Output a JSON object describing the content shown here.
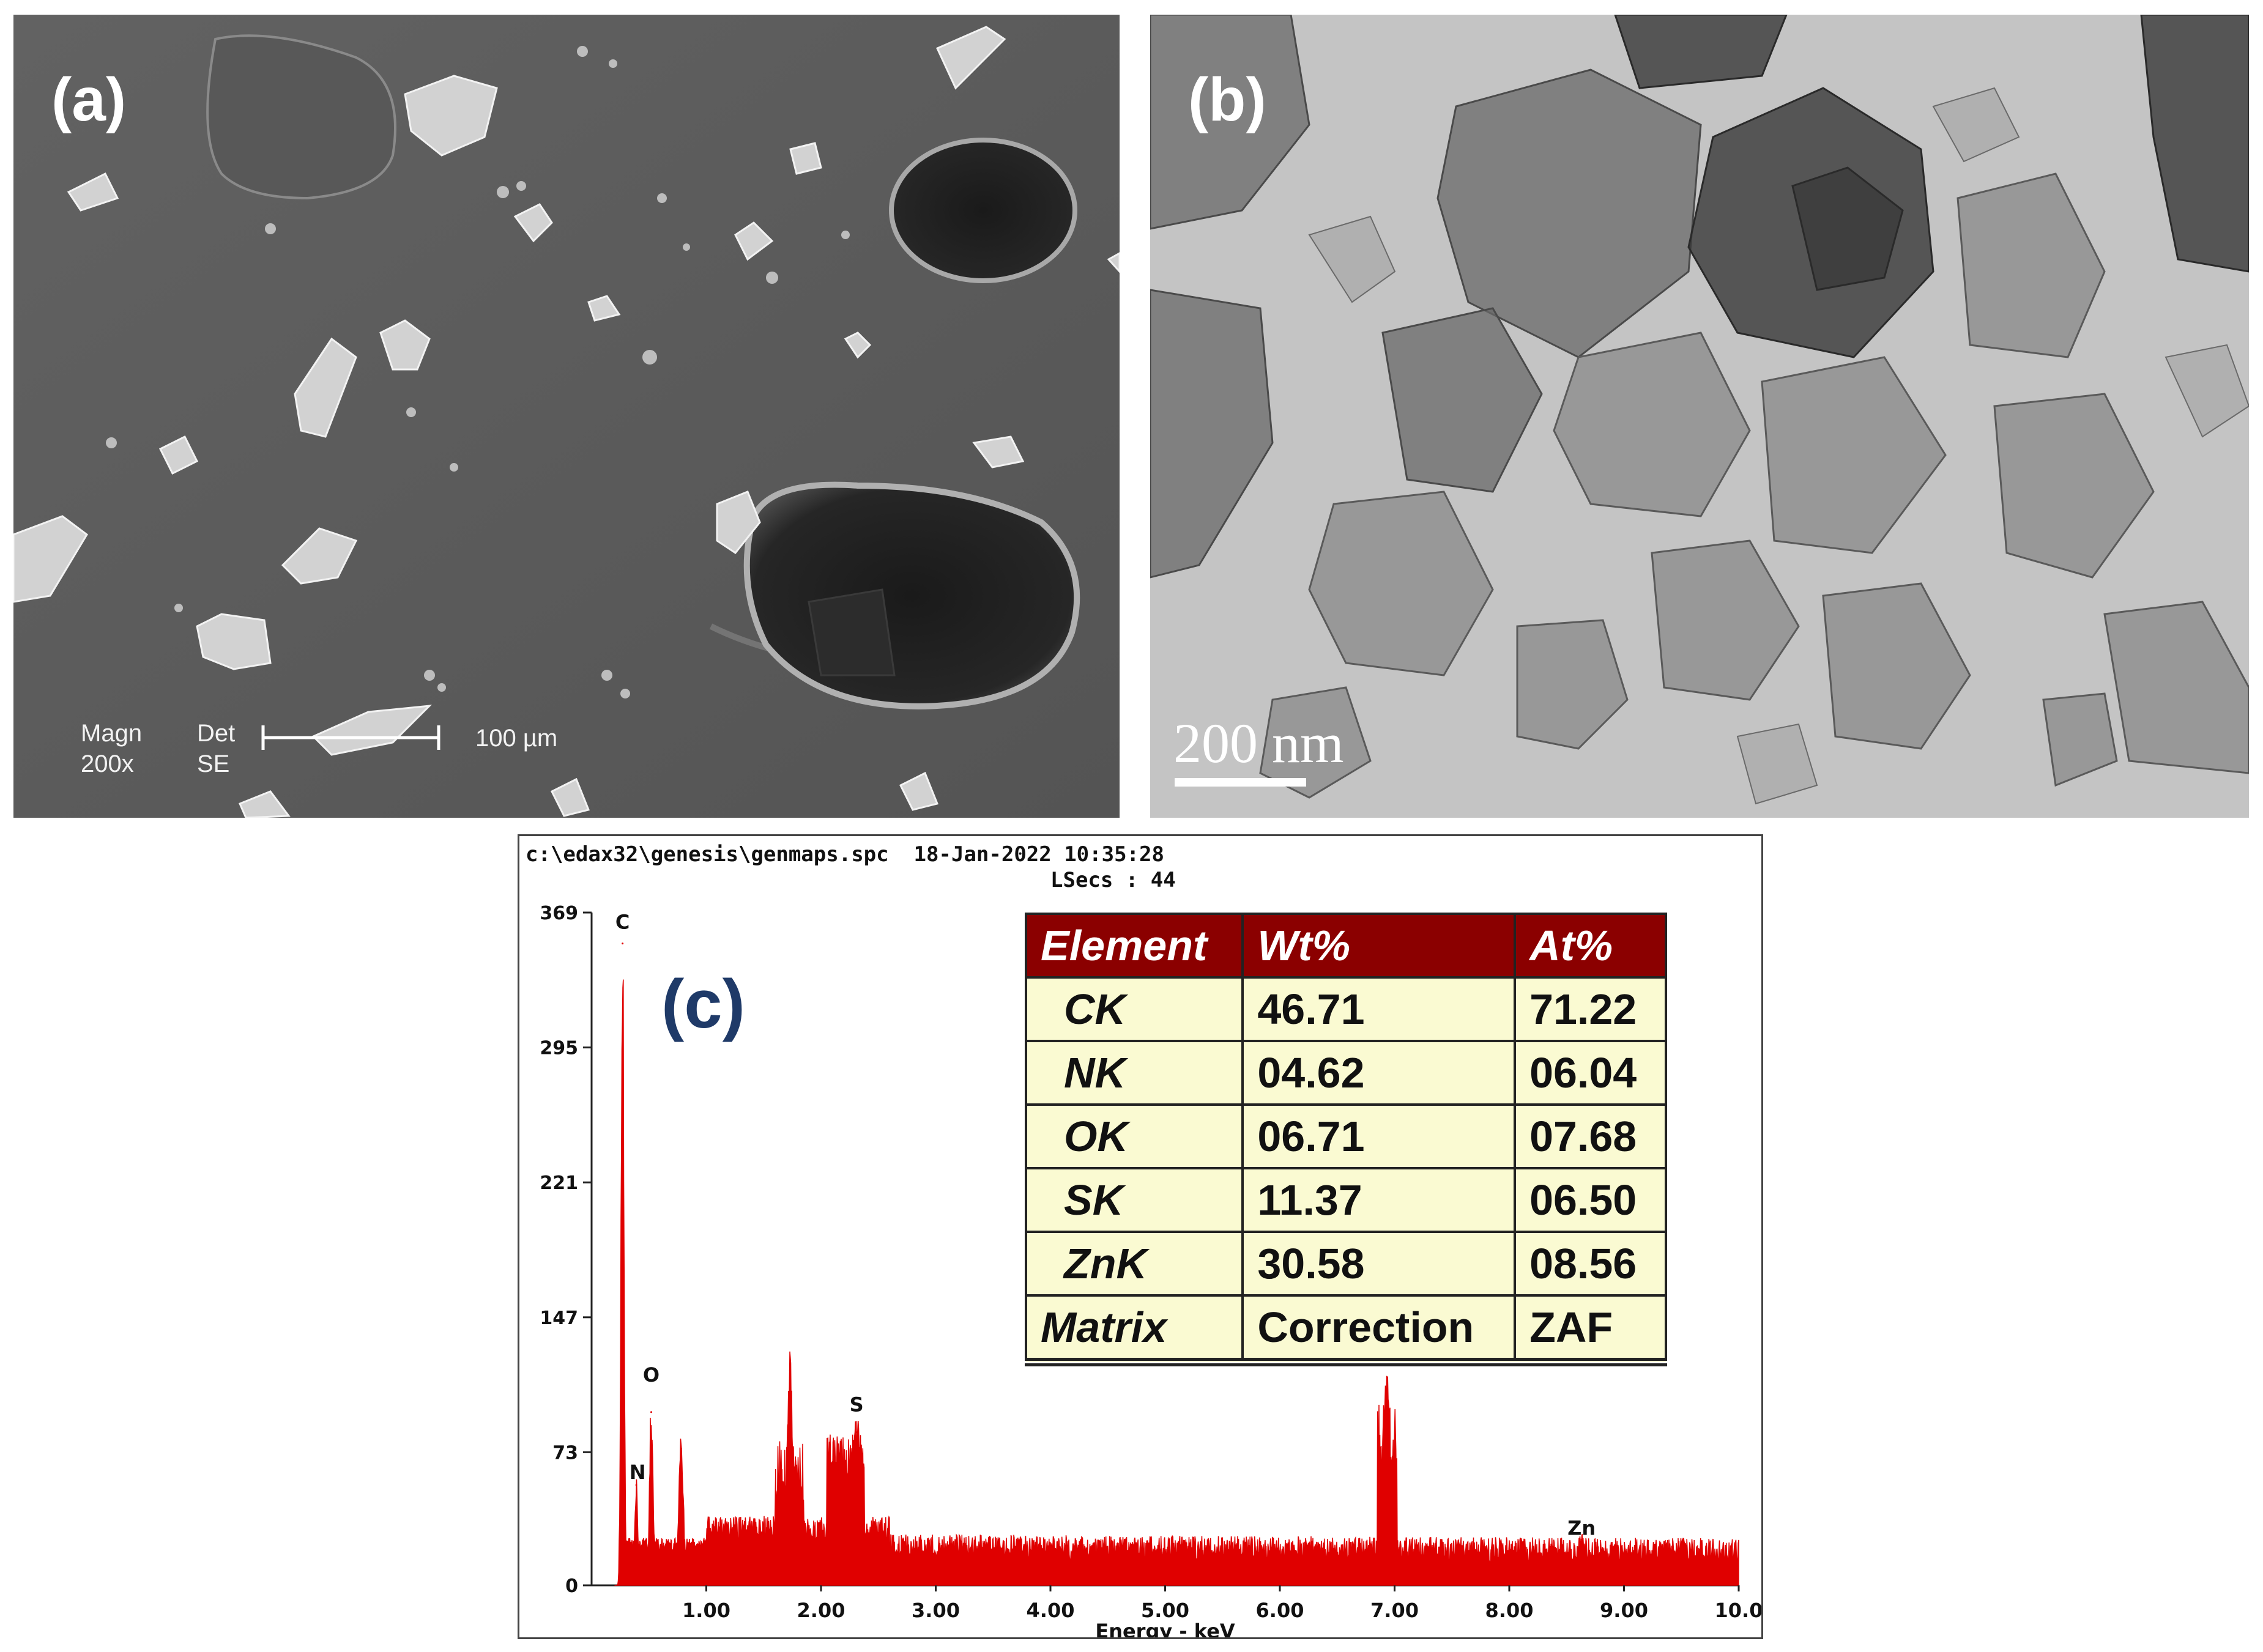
{
  "panel_a": {
    "label": "(a)",
    "magn_label": "Magn",
    "magn_value": "200x",
    "det_label": "Det",
    "det_value": "SE",
    "scale_text": "100 µm"
  },
  "panel_b": {
    "label": "(b)",
    "scale_text": "200 nm"
  },
  "panel_c": {
    "label": "(c)",
    "header_path": "c:\\edax32\\genesis\\genmaps.spc  18-Jan-2022 10:35:28",
    "header_lsecs": "LSecs : 44",
    "table": {
      "headers": [
        "Element",
        "Wt%",
        "At%"
      ],
      "rows": [
        [
          "CK",
          "46.71",
          "71.22"
        ],
        [
          "NK",
          "04.62",
          "06.04"
        ],
        [
          "OK",
          "06.71",
          "07.68"
        ],
        [
          "SK",
          "11.37",
          "06.50"
        ],
        [
          "ZnK",
          "30.58",
          "08.56"
        ],
        [
          "Matrix",
          "Correction",
          "ZAF"
        ]
      ]
    }
  },
  "colors": {
    "spectrum": "#e00000",
    "table_header": "#8b0000",
    "table_cell": "#fafad2",
    "panel_c_label": "#1f3a68"
  },
  "chart_data": {
    "type": "line",
    "xlabel": "Energy - keV",
    "ylabel": "",
    "xlim": [
      0,
      10.0
    ],
    "ylim": [
      0,
      369
    ],
    "x_ticks": [
      "1.00",
      "2.00",
      "3.00",
      "4.00",
      "5.00",
      "6.00",
      "7.00",
      "8.00",
      "9.00",
      "10.0"
    ],
    "y_ticks": [
      "0",
      "73",
      "147",
      "221",
      "295",
      "369"
    ],
    "peaks": [
      {
        "label": "C",
        "x": 0.27,
        "y": 352
      },
      {
        "label": "N",
        "x": 0.39,
        "y": 55
      },
      {
        "label": "O",
        "x": 0.52,
        "y": 95
      },
      {
        "label": "",
        "x": 0.78,
        "y": 75
      },
      {
        "label": "",
        "x": 1.73,
        "y": 118
      },
      {
        "label": "",
        "x": 2.15,
        "y": 72
      },
      {
        "label": "S",
        "x": 2.31,
        "y": 84
      },
      {
        "label": "",
        "x": 6.93,
        "y": 107
      },
      {
        "label": "Zn",
        "x": 8.63,
        "y": 25
      }
    ],
    "grid": false,
    "legend": "none"
  }
}
